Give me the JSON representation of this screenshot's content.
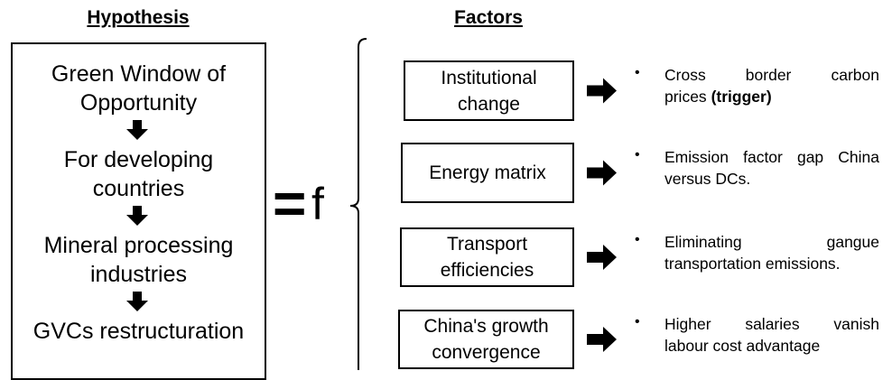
{
  "hypothesis": {
    "title": "Hypothesis",
    "steps": [
      [
        "Green Window of",
        "Opportunity"
      ],
      [
        "For developing",
        "countries"
      ],
      [
        "Mineral processing",
        "industries"
      ],
      [
        "GVCs restructuration"
      ]
    ]
  },
  "equation": {
    "equals": "=",
    "function": "f"
  },
  "factors": {
    "title": "Factors",
    "items": [
      {
        "label": [
          "Institutional",
          "change"
        ],
        "description": [
          "Cross border carbon",
          "prices"
        ],
        "emphasis": "(trigger)"
      },
      {
        "label": [
          "Energy matrix"
        ],
        "description": [
          "Emission factor gap China",
          "versus DCs."
        ]
      },
      {
        "label": [
          "Transport",
          "efficiencies"
        ],
        "description": [
          "Eliminating gangue",
          "transportation emissions."
        ]
      },
      {
        "label": [
          "China's growth",
          "convergence"
        ],
        "description": [
          "Higher salaries vanish",
          "labour cost advantage"
        ]
      }
    ]
  }
}
